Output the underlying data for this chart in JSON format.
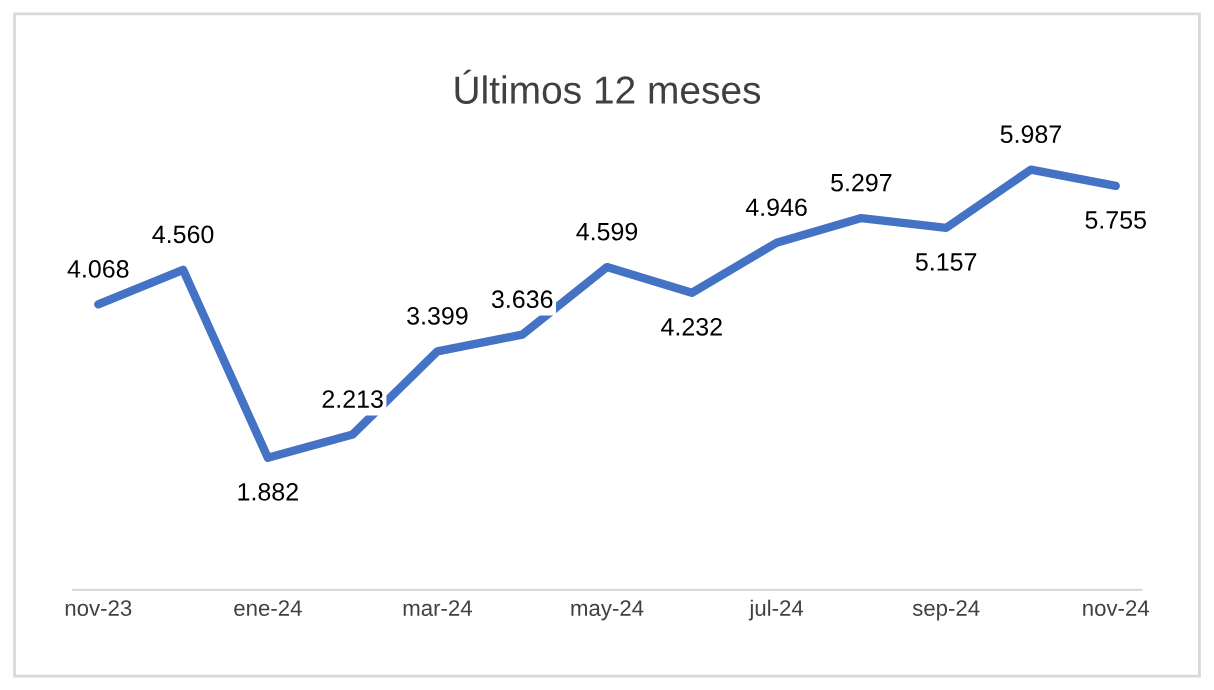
{
  "chart_data": {
    "type": "line",
    "title": "Últimos 12 meses",
    "categories": [
      "nov-23",
      null,
      "ene-24",
      null,
      "mar-24",
      null,
      "may-24",
      null,
      "jul-24",
      null,
      "sep-24",
      null,
      "nov-24"
    ],
    "series": [
      {
        "color": "#4472c4",
        "values": [
          4.068,
          4.56,
          1.882,
          2.213,
          3.399,
          3.636,
          4.599,
          4.232,
          4.946,
          5.297,
          5.157,
          5.987,
          5.755
        ],
        "value_labels": [
          "4.068",
          "4.560",
          "1.882",
          "2.213",
          "3.399",
          "3.636",
          "4.599",
          "4.232",
          "4.946",
          "5.297",
          "5.157",
          "5.987",
          "5.755"
        ]
      }
    ],
    "grid": false,
    "legend": false,
    "marker": "none",
    "line_style": "solid",
    "tick_labels": "x"
  }
}
